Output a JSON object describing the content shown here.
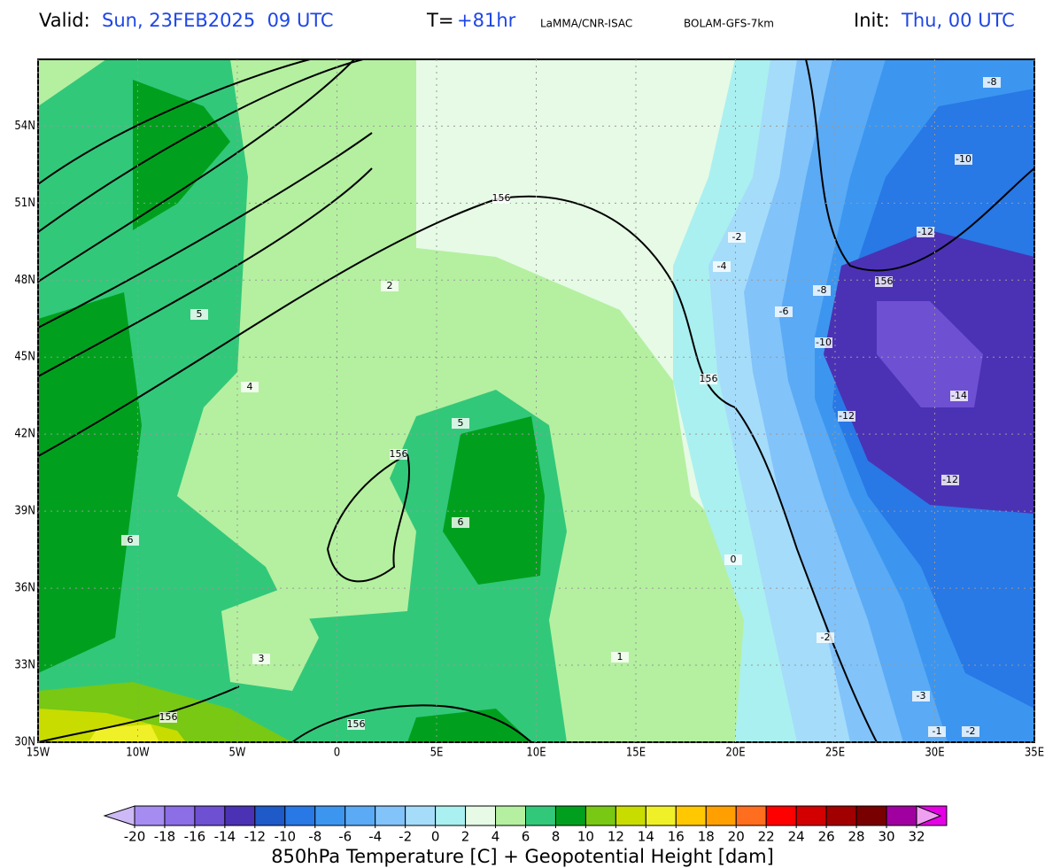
{
  "header": {
    "valid_label": "Valid:",
    "valid": "Sun, 23FEB2025  09 UTC",
    "t_label": "T=",
    "t": "+81hr",
    "source": "LaMMA/CNR-ISAC",
    "model": "BOLAM-GFS-7km",
    "init_label": "Init:",
    "init": "Thu, 00 UTC"
  },
  "map": {
    "lon_range": [
      -15,
      35
    ],
    "lat_range": [
      30,
      56.6
    ],
    "lon_ticks": [
      {
        "value": -15,
        "label": "15W"
      },
      {
        "value": -10,
        "label": "10W"
      },
      {
        "value": -5,
        "label": "5W"
      },
      0,
      {
        "value": 5,
        "label": "5E"
      },
      {
        "value": 10,
        "label": "10E"
      },
      {
        "value": 15,
        "label": "15E"
      },
      {
        "value": 20,
        "label": "20E"
      },
      {
        "value": 25,
        "label": "25E"
      },
      {
        "value": 30,
        "label": "30E"
      },
      {
        "value": 35,
        "label": "35E"
      }
    ],
    "lat_ticks": [
      {
        "value": 30,
        "label": "30N"
      },
      {
        "value": 33,
        "label": "33N"
      },
      {
        "value": 36,
        "label": "36N"
      },
      {
        "value": 39,
        "label": "39N"
      },
      {
        "value": 42,
        "label": "42N"
      },
      {
        "value": 45,
        "label": "45N"
      },
      {
        "value": 48,
        "label": "48N"
      },
      {
        "value": 51,
        "label": "51N"
      },
      {
        "value": 54,
        "label": "54N"
      }
    ],
    "contour_labels": [
      "156",
      "156",
      "156",
      "156",
      "156",
      "156",
      "-8",
      "-10",
      "-12",
      "-14",
      "-12",
      "-12",
      "-10",
      "-6",
      "-8",
      "-4",
      "-2",
      "2",
      "5",
      "6",
      "6",
      "5",
      "4",
      "3",
      "1",
      "-2",
      "-3",
      "0",
      "-1",
      "-2"
    ]
  },
  "colorbar": {
    "colors": [
      "#cdb9f5",
      "#a58cf0",
      "#8c6ee6",
      "#6e50d2",
      "#4b32b4",
      "#1e5ac8",
      "#2878e6",
      "#3c96f0",
      "#5aaaf5",
      "#82c3fa",
      "#a5dcfa",
      "#aaf0f0",
      "#e6fae6",
      "#b4f0a0",
      "#32c87a",
      "#00a01e",
      "#78c814",
      "#c8dc00",
      "#f0f028",
      "#ffc800",
      "#ffa000",
      "#ff6e1e",
      "#ff0000",
      "#d20000",
      "#a00000",
      "#780000",
      "#a000a0",
      "#e600e6",
      "#f0a0f0"
    ],
    "ticks": [
      -20,
      -18,
      -16,
      -14,
      -12,
      -10,
      -8,
      -6,
      -4,
      -2,
      0,
      2,
      4,
      6,
      8,
      10,
      12,
      14,
      16,
      18,
      20,
      22,
      24,
      26,
      28,
      30,
      32
    ],
    "title": "850hPa Temperature [C] + Geopotential Height [dam]"
  }
}
